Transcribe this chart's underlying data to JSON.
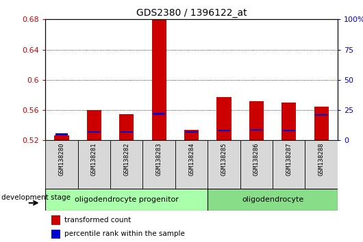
{
  "title": "GDS2380 / 1396122_at",
  "samples": [
    "GSM138280",
    "GSM138281",
    "GSM138282",
    "GSM138283",
    "GSM138284",
    "GSM138285",
    "GSM138286",
    "GSM138287",
    "GSM138288"
  ],
  "red_values": [
    0.527,
    0.56,
    0.555,
    0.68,
    0.534,
    0.577,
    0.572,
    0.57,
    0.565
  ],
  "blue_values": [
    0.528,
    0.531,
    0.531,
    0.555,
    0.531,
    0.533,
    0.534,
    0.533,
    0.554
  ],
  "ymin": 0.52,
  "ymax": 0.68,
  "yticks": [
    0.52,
    0.56,
    0.6,
    0.64,
    0.68
  ],
  "ytick_labels": [
    "0.52",
    "0.56",
    "0.6",
    "0.64",
    "0.68"
  ],
  "right_yticks": [
    0,
    25,
    50,
    75,
    100
  ],
  "right_ytick_labels": [
    "0",
    "25",
    "50",
    "75",
    "100%"
  ],
  "bar_color": "#cc0000",
  "blue_color": "#0000cc",
  "bar_width": 0.45,
  "groups": [
    {
      "label": "oligodendrocyte progenitor",
      "indices": [
        0,
        1,
        2,
        3,
        4
      ],
      "color": "#aaffaa"
    },
    {
      "label": "oligodendrocyte",
      "indices": [
        5,
        6,
        7,
        8
      ],
      "color": "#88dd88"
    }
  ],
  "group_label": "development stage",
  "legend_red": "transformed count",
  "legend_blue": "percentile rank within the sample",
  "tick_color_left": "#cc0000",
  "tick_color_right": "#0000cc",
  "sample_bg": "#d8d8d8",
  "chart_bg": "#ffffff"
}
